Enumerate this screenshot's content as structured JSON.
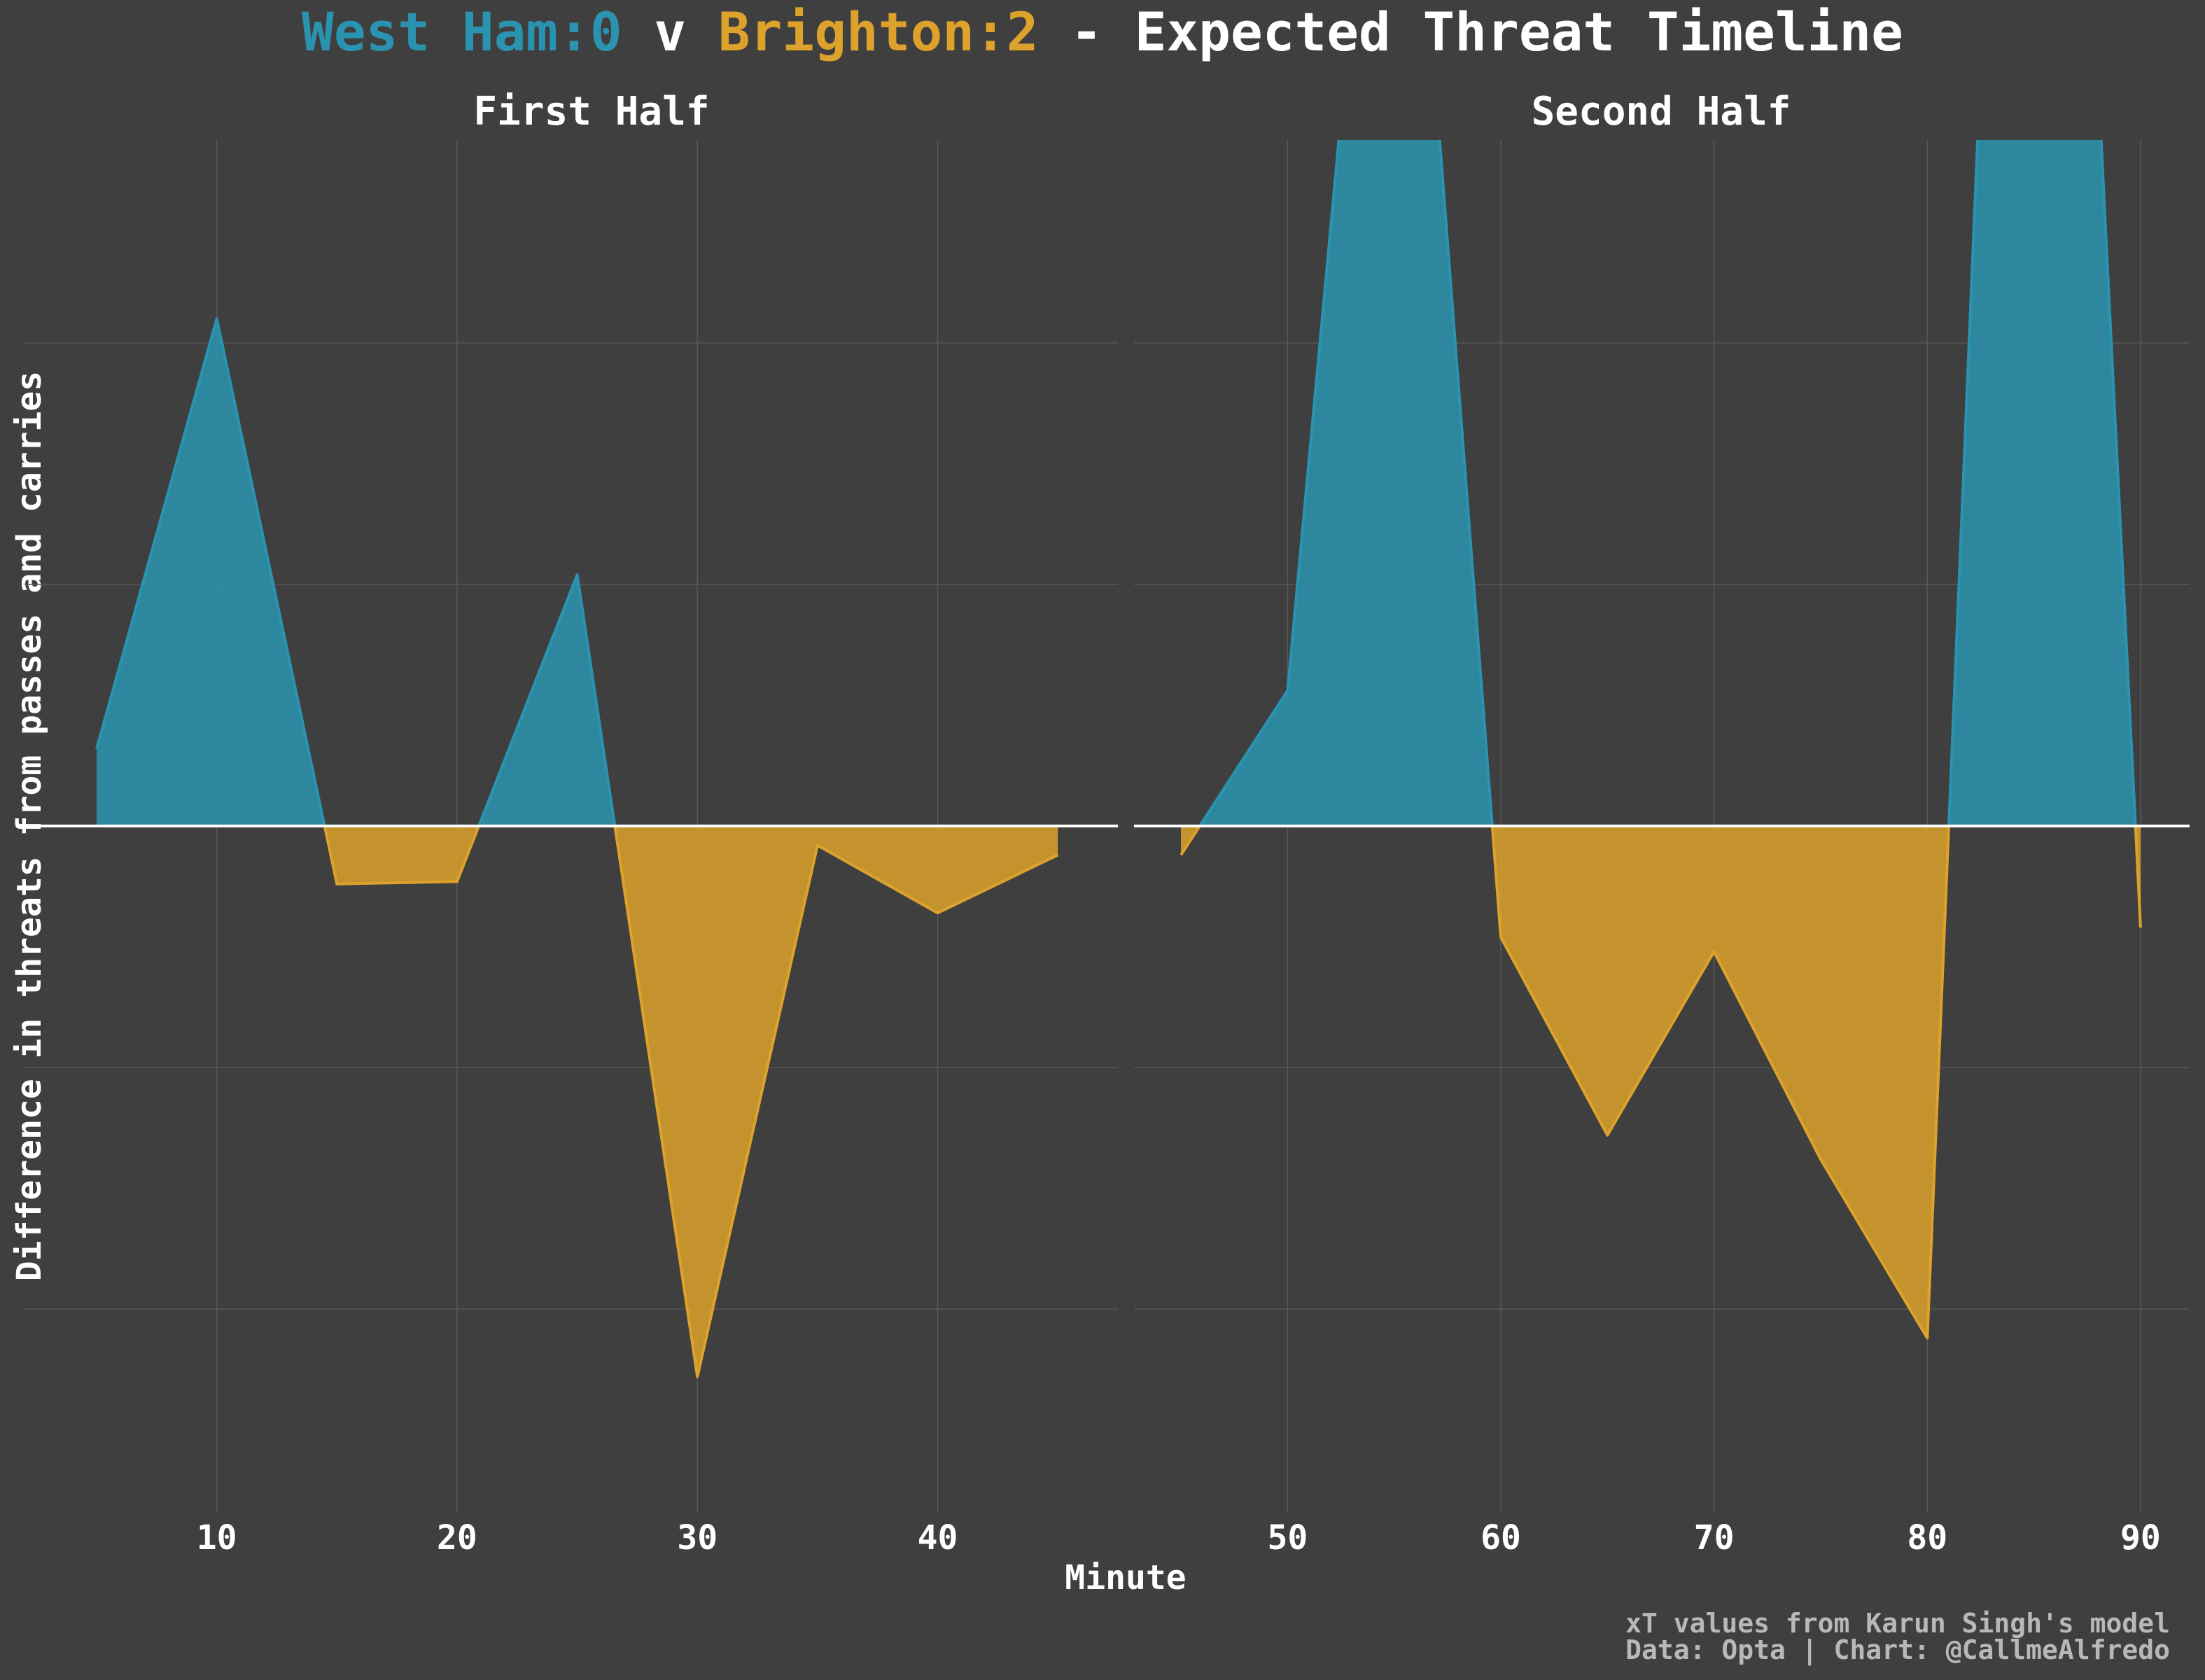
{
  "title": {
    "home": "West Ham:0",
    "sep": " v ",
    "away": "Brighton:2",
    "rest": " - Expected Threat Timeline"
  },
  "colors": {
    "background": "#3f3f3f",
    "home": "#2a94b0",
    "away": "#dca22b",
    "text": "#ffffff",
    "grid": "#585858",
    "zero_line": "#ffffff",
    "credit": "#b8b8b8"
  },
  "chart_data": [
    {
      "type": "area",
      "title": "First Half",
      "xlabel": "",
      "ylabel": "Difference in threats from passes and carries",
      "xlim": [
        2,
        47.5
      ],
      "ylim": [
        -1.42,
        1.42
      ],
      "xticks": [
        10,
        20,
        30,
        40
      ],
      "y_gridlines": [
        -1.0,
        -0.5,
        0.5,
        1.0
      ],
      "x_gridlines": [
        10,
        20,
        30,
        40
      ],
      "grid": true,
      "series": [
        {
          "x": [
            5,
            10,
            15,
            20,
            25,
            30,
            35,
            40,
            45
          ],
          "y": [
            0.16,
            1.05,
            -0.12,
            -0.115,
            0.52,
            -1.14,
            -0.04,
            -0.18,
            -0.06
          ]
        }
      ]
    },
    {
      "type": "area",
      "title": "Second Half",
      "xlabel": "",
      "ylabel": "",
      "xlim": [
        42.8,
        92.3
      ],
      "ylim": [
        -1.42,
        1.42
      ],
      "xticks": [
        50,
        60,
        70,
        80,
        90
      ],
      "y_gridlines": [
        -1.0,
        -0.5,
        0.5,
        1.0
      ],
      "x_gridlines": [
        50,
        60,
        70,
        80,
        90
      ],
      "grid": true,
      "series": [
        {
          "x": [
            45,
            50,
            55,
            60,
            65,
            70,
            75,
            80,
            85,
            90
          ],
          "y": [
            -0.06,
            0.28,
            2.65,
            -0.23,
            -0.64,
            -0.26,
            -0.69,
            -1.06,
            4.2,
            -0.21
          ]
        }
      ]
    }
  ],
  "shared_xlabel": "Minute",
  "credits": [
    "xT values from Karun Singh's model",
    "Data: Opta | Chart: @CallmeAlfredo"
  ]
}
